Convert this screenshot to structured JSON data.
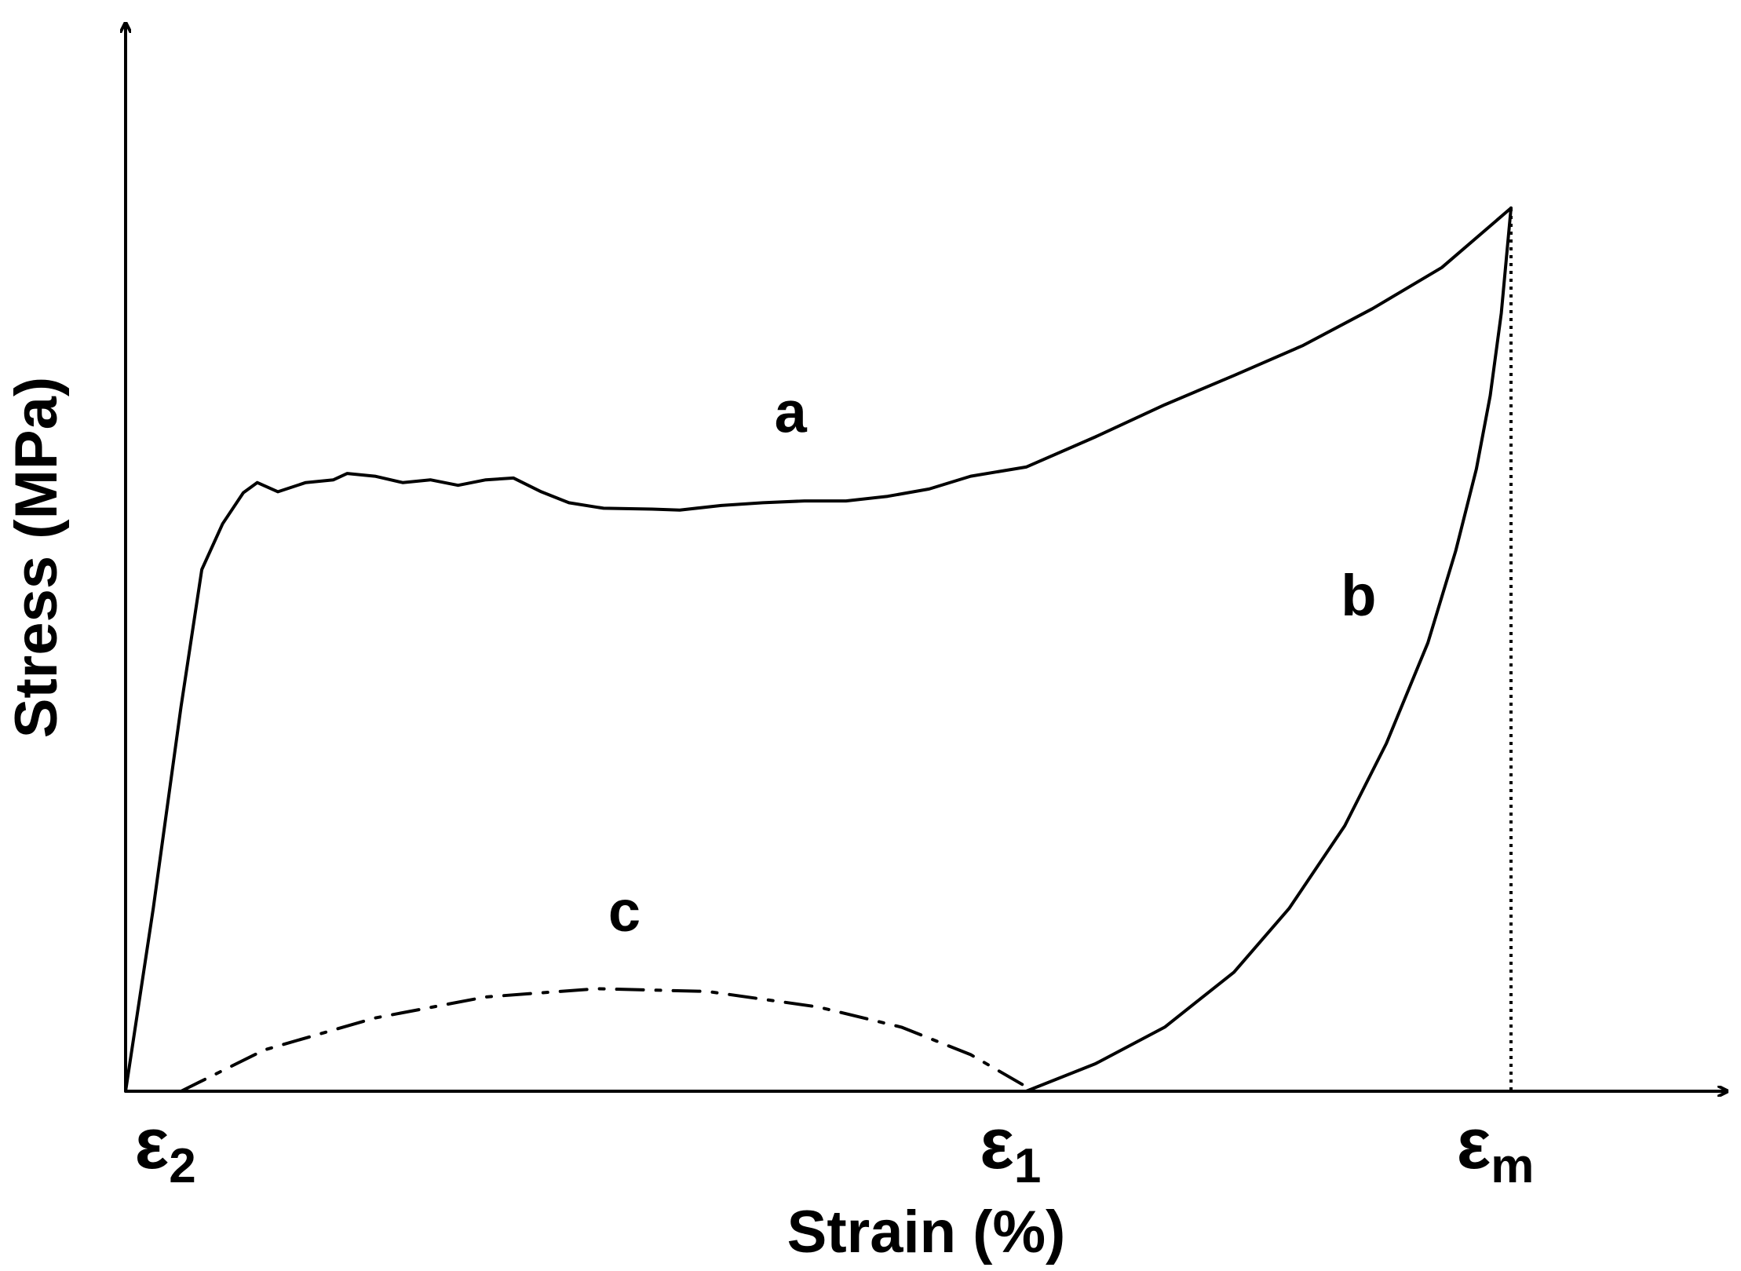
{
  "chart_data": {
    "type": "line",
    "xlabel": "Strain (%)",
    "ylabel": "Stress (MPa)",
    "xlim": [
      0,
      1
    ],
    "ylim": [
      0,
      1
    ],
    "ticks": [
      {
        "symbol": "ε",
        "sub": "2",
        "x": 0.04
      },
      {
        "symbol": "ε",
        "sub": "1",
        "x": 0.65
      },
      {
        "symbol": "ε",
        "sub": "m",
        "x": 1.0
      }
    ],
    "series": [
      {
        "name": "a",
        "style": "solid",
        "points": [
          [
            0.0,
            0.0
          ],
          [
            0.02,
            0.2
          ],
          [
            0.04,
            0.42
          ],
          [
            0.055,
            0.57
          ],
          [
            0.07,
            0.62
          ],
          [
            0.085,
            0.654
          ],
          [
            0.095,
            0.665
          ],
          [
            0.11,
            0.655
          ],
          [
            0.13,
            0.665
          ],
          [
            0.15,
            0.668
          ],
          [
            0.16,
            0.675
          ],
          [
            0.18,
            0.672
          ],
          [
            0.2,
            0.665
          ],
          [
            0.22,
            0.668
          ],
          [
            0.24,
            0.662
          ],
          [
            0.26,
            0.668
          ],
          [
            0.28,
            0.67
          ],
          [
            0.3,
            0.655
          ],
          [
            0.32,
            0.643
          ],
          [
            0.345,
            0.637
          ],
          [
            0.38,
            0.636
          ],
          [
            0.4,
            0.635
          ],
          [
            0.43,
            0.64
          ],
          [
            0.46,
            0.643
          ],
          [
            0.49,
            0.645
          ],
          [
            0.52,
            0.645
          ],
          [
            0.55,
            0.65
          ],
          [
            0.58,
            0.658
          ],
          [
            0.61,
            0.672
          ],
          [
            0.65,
            0.682
          ],
          [
            0.7,
            0.715
          ],
          [
            0.75,
            0.75
          ],
          [
            0.8,
            0.782
          ],
          [
            0.85,
            0.815
          ],
          [
            0.9,
            0.855
          ],
          [
            0.95,
            0.9
          ],
          [
            1.0,
            0.965
          ]
        ]
      },
      {
        "name": "b",
        "style": "solid",
        "points": [
          [
            0.65,
            0.0
          ],
          [
            0.7,
            0.03
          ],
          [
            0.75,
            0.07
          ],
          [
            0.8,
            0.13
          ],
          [
            0.84,
            0.2
          ],
          [
            0.88,
            0.29
          ],
          [
            0.91,
            0.38
          ],
          [
            0.94,
            0.49
          ],
          [
            0.96,
            0.59
          ],
          [
            0.975,
            0.68
          ],
          [
            0.985,
            0.76
          ],
          [
            0.993,
            0.85
          ],
          [
            1.0,
            0.965
          ]
        ]
      },
      {
        "name": "c",
        "style": "dash-dot",
        "points": [
          [
            0.04,
            0.0
          ],
          [
            0.1,
            0.045
          ],
          [
            0.18,
            0.08
          ],
          [
            0.26,
            0.103
          ],
          [
            0.34,
            0.112
          ],
          [
            0.42,
            0.109
          ],
          [
            0.5,
            0.092
          ],
          [
            0.56,
            0.07
          ],
          [
            0.61,
            0.04
          ],
          [
            0.65,
            0.005
          ]
        ]
      }
    ],
    "vline": {
      "x": 1.0,
      "style": "dotted",
      "y_top": 0.965
    },
    "series_labels": [
      {
        "text": "a",
        "x": 0.48,
        "y": 0.72
      },
      {
        "text": "b",
        "x": 0.89,
        "y": 0.52
      },
      {
        "text": "c",
        "x": 0.36,
        "y": 0.175
      }
    ]
  }
}
